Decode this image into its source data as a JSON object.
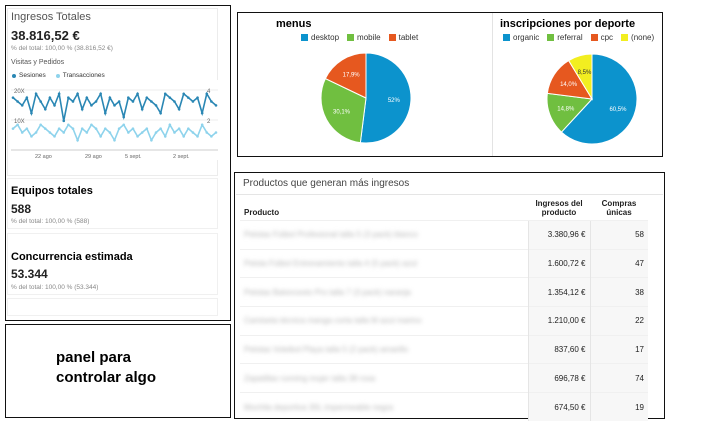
{
  "kpis": {
    "ingresos": {
      "label": "Ingresos Totales",
      "value": "38.816,52 €",
      "sub": "% del total: 100,00 % (38.816,52 €)"
    },
    "equipos": {
      "label": "Equipos totales",
      "value": "588",
      "sub": "% del total: 100,00 % (588)"
    },
    "concurrencia": {
      "label": "Concurrencia estimada",
      "value": "53.344",
      "sub": "% del total: 100,00 % (53.344)"
    }
  },
  "line_chart": {
    "title": "Visitas y Pedidos",
    "legend": [
      "Sesiones",
      "Transacciones"
    ],
    "left_ticks": [
      "20X",
      "10X"
    ],
    "right_ticks": [
      "4",
      "2"
    ],
    "x_ticks": [
      "22 ago",
      "29 ago",
      "5 sept.",
      "2 sept."
    ]
  },
  "charts": {
    "menus": {
      "title": "menus",
      "legend": [
        "desktop",
        "mobile",
        "tablet"
      ]
    },
    "deporte": {
      "title": "inscripciones por deporte",
      "legend": [
        "organic",
        "referral",
        "cpc",
        "(none)"
      ]
    }
  },
  "colors": {
    "blue": "#0c93cd",
    "green": "#70bf40",
    "orange": "#e6581f",
    "yellow": "#f2ee20",
    "line_dark": "#2a87b4",
    "line_light": "#8ed3ec"
  },
  "chart_data": [
    {
      "type": "pie",
      "title": "menus",
      "categories": [
        "desktop",
        "mobile",
        "tablet"
      ],
      "values": [
        52,
        30.1,
        17.9
      ],
      "labels": [
        "52%",
        "30,1%",
        "17,9%"
      ]
    },
    {
      "type": "pie",
      "title": "inscripciones por deporte",
      "categories": [
        "organic",
        "referral",
        "cpc",
        "(none)"
      ],
      "values": [
        60.5,
        14.8,
        14.0,
        8.5
      ],
      "labels": [
        "60,5%",
        "14,8%",
        "14,0%",
        "8,5%"
      ]
    },
    {
      "type": "line",
      "title": "Visitas y Pedidos",
      "series": [
        {
          "name": "Sesiones",
          "values": [
            18,
            17,
            16,
            18,
            14,
            19,
            17,
            15,
            18,
            16,
            19,
            12,
            18,
            17,
            19,
            15,
            18,
            16,
            17,
            19,
            14,
            18,
            16,
            17,
            13,
            18,
            17,
            19,
            15,
            18,
            17,
            16,
            14,
            19,
            18,
            17,
            15,
            19,
            18,
            17,
            18,
            14,
            19,
            17,
            16
          ]
        },
        {
          "name": "Transacciones",
          "values": [
            10,
            11,
            9,
            10,
            8,
            9,
            11,
            10,
            9,
            8,
            10,
            9,
            11,
            10,
            7,
            10,
            9,
            11,
            10,
            8,
            10,
            9,
            7,
            10,
            11,
            9,
            10,
            8,
            9,
            10,
            7,
            9,
            10,
            8,
            11,
            9,
            10,
            8,
            10,
            9,
            8,
            11,
            9,
            8,
            9
          ]
        }
      ]
    }
  ],
  "products": {
    "title": "Productos que generan más ingresos",
    "columns": {
      "product": "Producto",
      "revenue": "Ingresos del producto",
      "purchases": "Compras únicas"
    },
    "rows": [
      {
        "name": "Pelotas Fútbol Profesional talla 5 (3 pack) blanco",
        "revenue": "3.380,96 €",
        "purchases": "58"
      },
      {
        "name": "Pelota Fútbol Entrenamiento talla 4 (5 pack) azul",
        "revenue": "1.600,72 €",
        "purchases": "47"
      },
      {
        "name": "Pelotas Baloncesto Pro talla 7 (3 pack) naranja",
        "revenue": "1.354,12 €",
        "purchases": "38"
      },
      {
        "name": "Camiseta técnica manga corta talla M azul marino",
        "revenue": "1.210,00 €",
        "purchases": "22"
      },
      {
        "name": "Pelotas Voleibol Playa talla 5 (2 pack) amarillo",
        "revenue": "837,60 €",
        "purchases": "17"
      },
      {
        "name": "Zapatillas running mujer talla 38 rosa",
        "revenue": "696,78 €",
        "purchases": "74"
      },
      {
        "name": "Mochila deportiva 30L impermeable negra",
        "revenue": "674,50 €",
        "purchases": "19"
      }
    ]
  },
  "panel": {
    "text_line1": "panel para",
    "text_line2": "controlar algo"
  }
}
